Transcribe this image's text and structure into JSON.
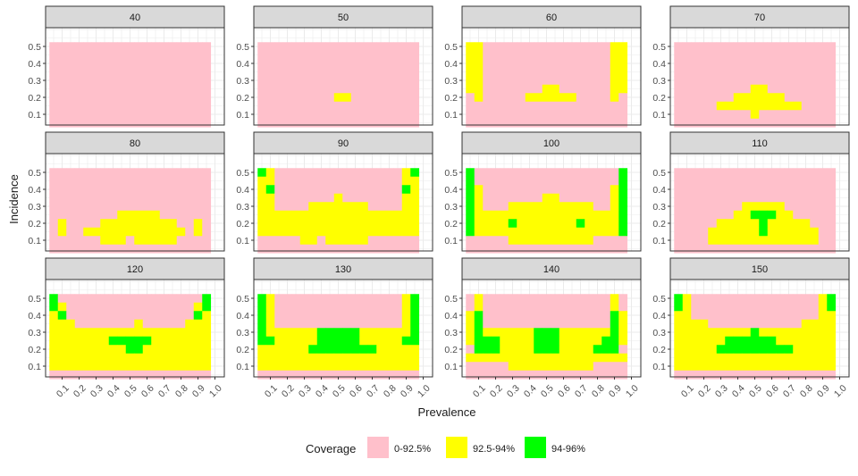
{
  "chart_data": {
    "type": "heatmap",
    "xlabel": "Prevalence",
    "ylabel": "Incidence",
    "x_ticks": [
      "0.1",
      "0.2",
      "0.3",
      "0.4",
      "0.5",
      "0.6",
      "0.7",
      "0.8",
      "0.9",
      "1.0"
    ],
    "y_ticks": [
      "0.1",
      "0.2",
      "0.3",
      "0.4",
      "0.5"
    ],
    "xlim": [
      0.0,
      1.0
    ],
    "ylim": [
      0.05,
      0.55
    ],
    "x_cells": [
      0.05,
      0.1,
      0.15,
      0.2,
      0.25,
      0.3,
      0.35,
      0.4,
      0.45,
      0.5,
      0.55,
      0.6,
      0.65,
      0.7,
      0.75,
      0.8,
      0.85,
      0.9,
      0.95
    ],
    "y_cells": [
      0.5,
      0.45,
      0.4,
      0.35,
      0.3,
      0.25,
      0.2,
      0.15,
      0.1,
      0.05
    ],
    "legend": {
      "title": "Coverage",
      "placement": "bottom",
      "items": [
        {
          "code": "0",
          "label": "0-92.5%",
          "color": "#FFC0CB"
        },
        {
          "code": "1",
          "label": "92.5-94%",
          "color": "#FFFF00"
        },
        {
          "code": "2",
          "label": "94-96%",
          "color": "#00FF00"
        }
      ]
    },
    "panels": [
      {
        "title": "40",
        "rows": [
          "0000000000000000000",
          "0000000000000000000",
          "0000000000000000000",
          "0000000000000000000",
          "0000000000000000000",
          "0000000000000000000",
          "0000000000000000000",
          "0000000000000000000",
          "0000000000000000000",
          "0000000000000000000"
        ]
      },
      {
        "title": "50",
        "rows": [
          "0000000000000000000",
          "0000000000000000000",
          "0000000000000000000",
          "0000000000000000000",
          "0000000000000000000",
          "0000000000000000000",
          "0000000001100000000",
          "0000000000000000000",
          "0000000000000000000",
          "0000000000000000000"
        ]
      },
      {
        "title": "60",
        "rows": [
          "1100000000000000011",
          "1100000000000000011",
          "1100000000000000011",
          "1100000000000000011",
          "1100000000000000011",
          "1100000001100000011",
          "0100000111111000010",
          "0000000000000000000",
          "0000000000000000000",
          "0000000000000000000"
        ]
      },
      {
        "title": "70",
        "rows": [
          "0000000000000000000",
          "0000000000000000000",
          "0000000000000000000",
          "0000000000000000000",
          "0000000000000000000",
          "0000000001100000000",
          "0000000111111000000",
          "0000011111111110000",
          "0000000001000000000",
          "0000000000000000000"
        ]
      },
      {
        "title": "80",
        "rows": [
          "0000000000000000000",
          "0000000000000000000",
          "0000000000000000000",
          "0000000000000000000",
          "0000000000000000000",
          "0000000011111000000",
          "0100001111111110010",
          "0100111111111111010",
          "0000001110111110000",
          "0000000000000000000"
        ]
      },
      {
        "title": "90",
        "rows": [
          "2100000000000000012",
          "1100000000000000011",
          "1200000000000000021",
          "1100000001000000011",
          "1100001111111000011",
          "1111111111111111111",
          "1111111111111111111",
          "1111111111111111111",
          "0000011011111000000",
          "0000000000000000000"
        ]
      },
      {
        "title": "100",
        "rows": [
          "2000000000000000002",
          "2000000000000000002",
          "2100000000000000012",
          "2100000001100000012",
          "2100011111111110012",
          "2111111111111111112",
          "2111121111111211112",
          "2111111111111111112",
          "0000011111111110000",
          "0000000000000000000"
        ]
      },
      {
        "title": "110",
        "rows": [
          "0000000000000000000",
          "0000000000000000000",
          "0000000000000000000",
          "0000000000000000000",
          "0000000011111000000",
          "0000000112221100000",
          "0000011111211111000",
          "0000111111211111100",
          "0000111111111111100",
          "0000000000000000000"
        ]
      },
      {
        "title": "120",
        "rows": [
          "2000000000000000002",
          "2100000000000000012",
          "1200000000000000021",
          "1110000000100000111",
          "1111111111111111111",
          "1111111222221111111",
          "1111111112211111111",
          "1111111111111111111",
          "1111111111111111111",
          "0000000000000000000"
        ]
      },
      {
        "title": "130",
        "rows": [
          "2100000000000000012",
          "2100000000000000012",
          "2100000000000000012",
          "2100000000000000012",
          "2111111222221111112",
          "2211111222221111122",
          "1111112222222211111",
          "1111111111111111111",
          "1111111111111111111",
          "0000000000000000000"
        ]
      },
      {
        "title": "140",
        "rows": [
          "0100000000000000010",
          "0100000000000000010",
          "1200000000000000021",
          "1200000000000000021",
          "1211111122211111121",
          "1222111122211111221",
          "0222111122211112220",
          "1111111111111111111",
          "0000011111111110000",
          "0000000000000000000"
        ]
      },
      {
        "title": "150",
        "rows": [
          "2100000000000000012",
          "2100000000000000012",
          "1100000000000000011",
          "1111000000000001111",
          "1111111112111111111",
          "1111112222221111111",
          "1111122222222211111",
          "1111111111111111111",
          "1111111111111111111",
          "0000000000000000000"
        ]
      }
    ]
  }
}
